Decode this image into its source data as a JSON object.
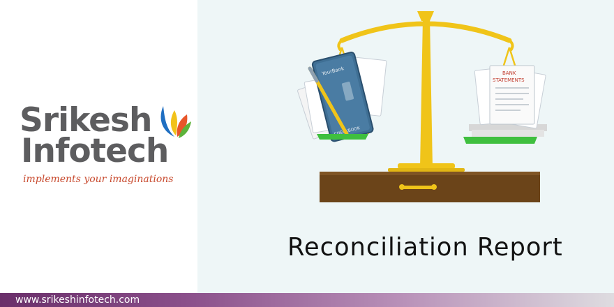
{
  "brand": {
    "name_line1": "Srikesh",
    "name_line2": "Infotech",
    "tagline": "implements your imaginations"
  },
  "illustration": {
    "checkbook_label": "CHECKBOOK",
    "bank_label": "YourBank",
    "statements_label_line1": "BANK",
    "statements_label_line2": "STATEMENTS"
  },
  "title": "Reconciliation Report",
  "footer": {
    "url": "www.srikeshinfotech.com"
  },
  "colors": {
    "brand_gray": "#5d5d5f",
    "tagline_red": "#c84a2e",
    "leaf_blue": "#1f6fc2",
    "leaf_yellow": "#f2c21a",
    "leaf_orange": "#e8562a",
    "leaf_green": "#5db33a",
    "scale_gold": "#f0c419",
    "base_brown": "#6b4419",
    "pan_green": "#3fbf3f",
    "footer_purple": "#6a2f6a"
  }
}
